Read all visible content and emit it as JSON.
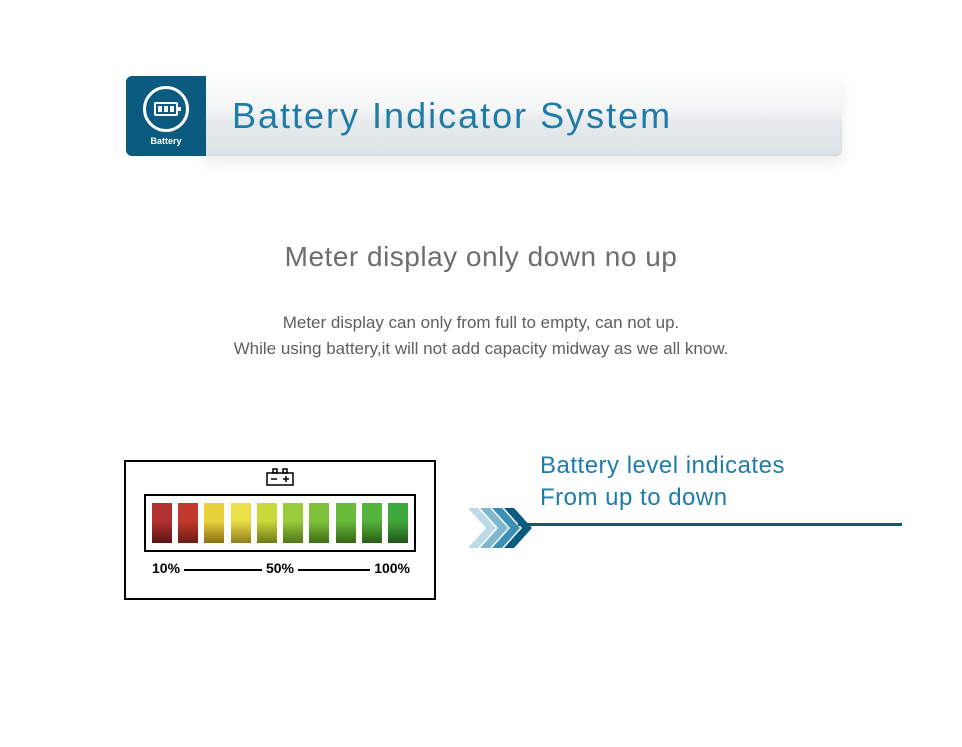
{
  "colors": {
    "brand_deep": "#0b5a80",
    "brand_title": "#1f7ca8",
    "subheading": "#6c6d6e",
    "body_text": "#5d5e5f",
    "arrow_text": "#1f7ca8",
    "arrow_line": "#0b5a80",
    "chevron1": "#bcd9e6",
    "chevron2": "#7fb7cf",
    "chevron3": "#3a8fb5",
    "chevron4": "#0b5a80"
  },
  "header": {
    "icon_label": "Battery",
    "title": "Battery Indicator System"
  },
  "text": {
    "subheading": "Meter display only down no up",
    "body_line1": "Meter display can only from full to empty, can not up.",
    "body_line2": "While using battery,it will not add capacity midway as we all know."
  },
  "meter": {
    "bars": [
      {
        "top": "#b23131",
        "bottom": "#5c1313"
      },
      {
        "top": "#c23a2c",
        "bottom": "#6a1d12"
      },
      {
        "top": "#e7d23a",
        "bottom": "#8a6f14"
      },
      {
        "top": "#ece04a",
        "bottom": "#8f7d18"
      },
      {
        "top": "#c9d93a",
        "bottom": "#6e7a18"
      },
      {
        "top": "#9acb3a",
        "bottom": "#4f7718"
      },
      {
        "top": "#7fc23a",
        "bottom": "#3f6e18"
      },
      {
        "top": "#6abb3a",
        "bottom": "#336618"
      },
      {
        "top": "#55b23a",
        "bottom": "#2a5e18"
      },
      {
        "top": "#3fa83a",
        "bottom": "#1f5518"
      }
    ],
    "scale": {
      "l10": "10%",
      "l50": "50%",
      "l100": "100%"
    }
  },
  "arrow": {
    "line1": "Battery level indicates",
    "line2": "From up to down"
  }
}
